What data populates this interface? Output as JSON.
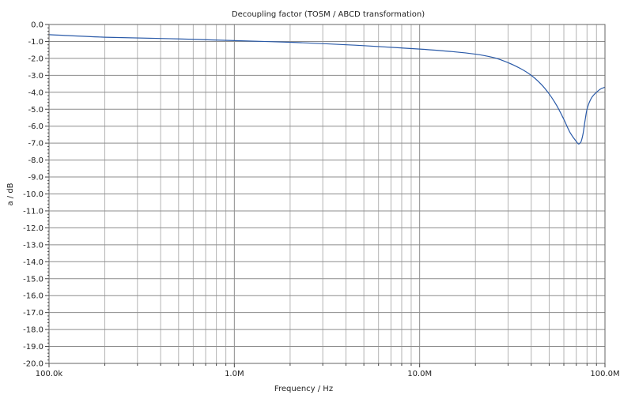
{
  "chart_data": {
    "type": "line",
    "title": "Decoupling factor (TOSM / ABCD transformation)",
    "xlabel": "Frequency / Hz",
    "ylabel": "a / dB",
    "x_scale": "log",
    "xlim": [
      100000,
      100000000
    ],
    "ylim": [
      -20,
      0
    ],
    "grid": true,
    "x_tick_labels": [
      {
        "value": 100000,
        "label": "100.0k"
      },
      {
        "value": 1000000,
        "label": "1.0M"
      },
      {
        "value": 10000000,
        "label": "10.0M"
      },
      {
        "value": 100000000,
        "label": "100.0M"
      }
    ],
    "y_tick_labels": [
      {
        "value": 0,
        "label": "0.0"
      },
      {
        "value": -1,
        "label": "-1.0"
      },
      {
        "value": -2,
        "label": "-2.0"
      },
      {
        "value": -3,
        "label": "-3.0"
      },
      {
        "value": -4,
        "label": "-4.0"
      },
      {
        "value": -5,
        "label": "-5.0"
      },
      {
        "value": -6,
        "label": "-6.0"
      },
      {
        "value": -7,
        "label": "-7.0"
      },
      {
        "value": -8,
        "label": "-8.0"
      },
      {
        "value": -9,
        "label": "-9.0"
      },
      {
        "value": -10,
        "label": "-10.0"
      },
      {
        "value": -11,
        "label": "-11.0"
      },
      {
        "value": -12,
        "label": "-12.0"
      },
      {
        "value": -13,
        "label": "-13.0"
      },
      {
        "value": -14,
        "label": "-14.0"
      },
      {
        "value": -15,
        "label": "-15.0"
      },
      {
        "value": -16,
        "label": "-16.0"
      },
      {
        "value": -17,
        "label": "-17.0"
      },
      {
        "value": -18,
        "label": "-18.0"
      },
      {
        "value": -19,
        "label": "-19.0"
      },
      {
        "value": -20,
        "label": "-20.0"
      }
    ],
    "series": [
      {
        "color": "#2a5aa8",
        "x": [
          100000,
          200000,
          500000,
          1000000,
          2000000,
          5000000,
          10000000,
          15000000,
          20000000,
          25000000,
          30000000,
          35000000,
          40000000,
          45000000,
          50000000,
          55000000,
          60000000,
          65000000,
          70000000,
          72000000,
          74000000,
          76000000,
          78000000,
          80000000,
          85000000,
          90000000,
          95000000,
          100000000
        ],
        "y": [
          -0.6,
          -0.75,
          -0.85,
          -0.95,
          -1.05,
          -1.25,
          -1.45,
          -1.6,
          -1.75,
          -1.95,
          -2.25,
          -2.6,
          -3.0,
          -3.5,
          -4.1,
          -4.8,
          -5.6,
          -6.4,
          -6.9,
          -7.05,
          -6.95,
          -6.5,
          -5.7,
          -5.0,
          -4.3,
          -4.0,
          -3.8,
          -3.7
        ]
      }
    ]
  }
}
